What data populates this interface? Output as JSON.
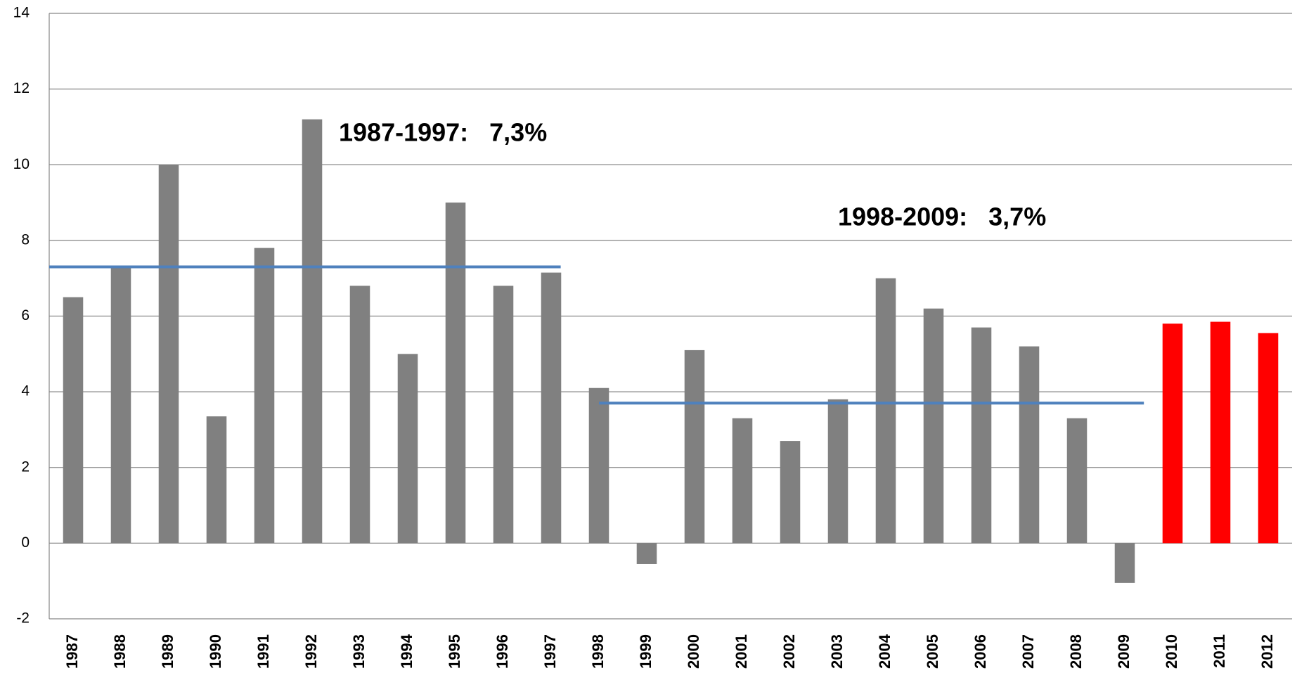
{
  "chart_data": {
    "type": "bar",
    "categories": [
      "1987",
      "1988",
      "1989",
      "1990",
      "1991",
      "1992",
      "1993",
      "1994",
      "1995",
      "1996",
      "1997",
      "1998",
      "1999",
      "2000",
      "2001",
      "2002",
      "2003",
      "2004",
      "2005",
      "2006",
      "2007",
      "2008",
      "2009",
      "2010",
      "2011",
      "2012"
    ],
    "values": [
      6.5,
      7.3,
      10.0,
      3.35,
      7.8,
      11.2,
      6.8,
      5.0,
      9.0,
      6.8,
      7.15,
      4.1,
      -0.55,
      5.1,
      3.3,
      2.7,
      3.8,
      7.0,
      6.2,
      5.7,
      5.2,
      3.3,
      -1.05,
      5.8,
      5.85,
      5.55
    ],
    "colors": [
      "#808080",
      "#808080",
      "#808080",
      "#808080",
      "#808080",
      "#808080",
      "#808080",
      "#808080",
      "#808080",
      "#808080",
      "#808080",
      "#808080",
      "#808080",
      "#808080",
      "#808080",
      "#808080",
      "#808080",
      "#808080",
      "#808080",
      "#808080",
      "#808080",
      "#808080",
      "#808080",
      "#ff0000",
      "#ff0000",
      "#ff0000"
    ],
    "ylim": [
      -2,
      14
    ],
    "yticks": [
      -2,
      0,
      2,
      4,
      6,
      8,
      10,
      12,
      14
    ],
    "grid": true,
    "reference_lines": [
      {
        "label": "1987-1997:   7,3%",
        "value": 7.3,
        "from": "1987",
        "to": "1997",
        "color": "#4f81bd"
      },
      {
        "label": "1998-2009:   3,7%",
        "value": 3.7,
        "from": "1998",
        "to": "2009",
        "color": "#4f81bd"
      }
    ]
  }
}
